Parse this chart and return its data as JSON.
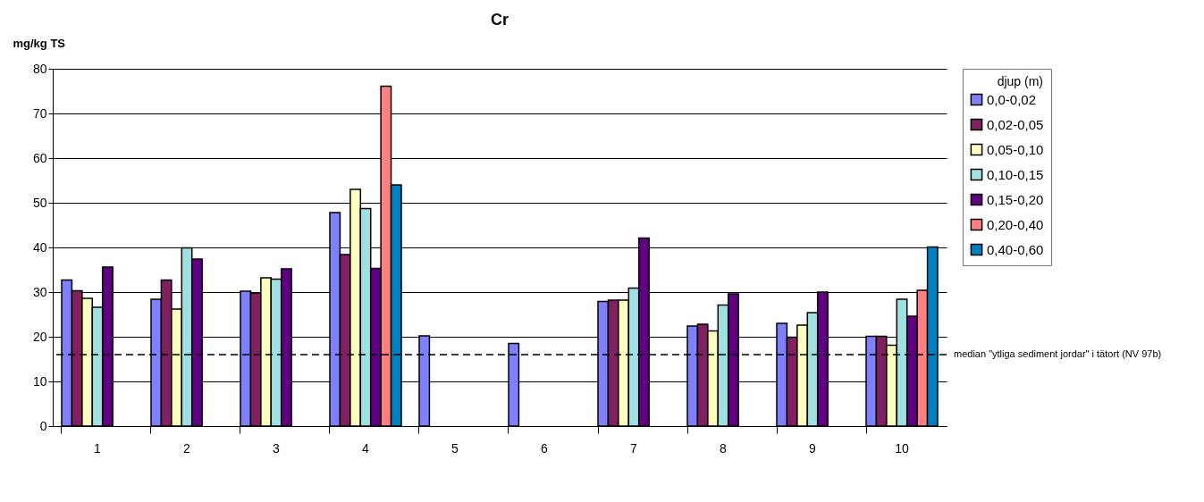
{
  "chart_data": {
    "type": "bar",
    "title": "Cr",
    "ylabel": "mg/kg TS",
    "legend_title": "djup (m)",
    "legend": "right",
    "grid": "y",
    "categories": [
      "1",
      "2",
      "3",
      "4",
      "5",
      "6",
      "7",
      "8",
      "9",
      "10"
    ],
    "ylim": [
      0,
      80
    ],
    "yticks": [
      0,
      10,
      20,
      30,
      40,
      50,
      60,
      70,
      80
    ],
    "series": [
      {
        "name": "0,0-0,02",
        "color": "#8080ff",
        "values": [
          32.7,
          28.4,
          30.2,
          47.8,
          20.2,
          18.5,
          27.9,
          22.4,
          23.0,
          20.1
        ]
      },
      {
        "name": "0,02-0,05",
        "color": "#802060",
        "values": [
          30.3,
          32.7,
          29.8,
          38.4,
          null,
          null,
          28.2,
          22.8,
          19.9,
          20.1
        ]
      },
      {
        "name": "0,05-0,10",
        "color": "#ffffc0",
        "values": [
          28.6,
          26.2,
          33.2,
          53.0,
          null,
          null,
          28.2,
          21.3,
          22.6,
          18.1
        ]
      },
      {
        "name": "0,10-0,15",
        "color": "#a0e0e0",
        "values": [
          26.6,
          39.9,
          32.9,
          48.7,
          null,
          null,
          30.9,
          27.1,
          25.4,
          28.4
        ]
      },
      {
        "name": "0,15-0,20",
        "color": "#600080",
        "values": [
          35.6,
          37.4,
          35.2,
          35.3,
          null,
          null,
          42.1,
          29.6,
          30.0,
          24.6
        ]
      },
      {
        "name": "0,20-0,40",
        "color": "#ff8080",
        "values": [
          null,
          null,
          null,
          76.1,
          null,
          null,
          null,
          null,
          null,
          30.4
        ]
      },
      {
        "name": "0,40-0,60",
        "color": "#0080c0",
        "values": [
          null,
          null,
          null,
          54.0,
          null,
          null,
          null,
          null,
          null,
          40.1
        ]
      }
    ],
    "ref_lines": [
      {
        "axis": "y",
        "value": 16,
        "label": "median \"ytliga sediment jordar\" i tätort (NV 97b)",
        "color": "#000000",
        "line_style": "dashed"
      }
    ]
  }
}
